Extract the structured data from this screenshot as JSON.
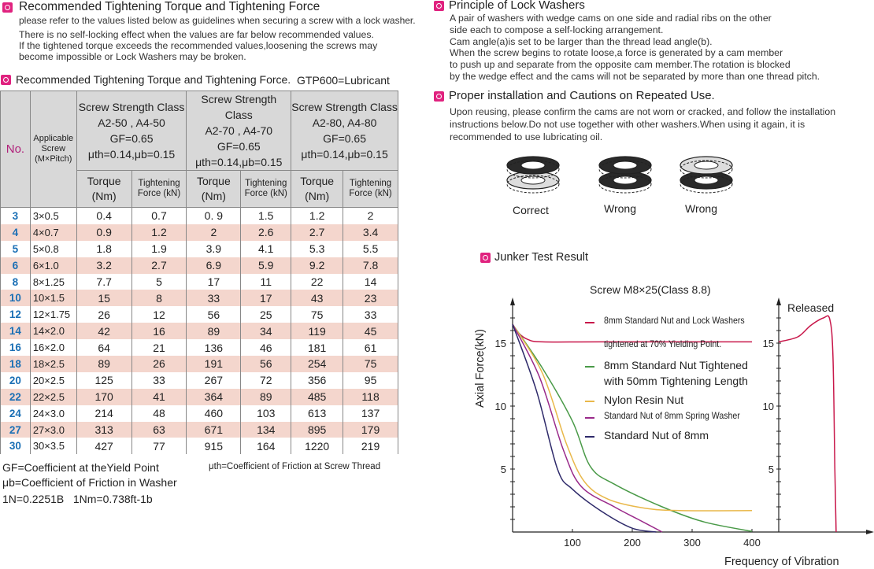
{
  "section1": {
    "title": "Recommended Tightening Torque and Tightening Force",
    "lines": [
      "please refer to the values listed below as guidelines when securing a screw with a lock washer.",
      "There is no self-locking effect when the values are far below recommended values.",
      "If the tightened torque exceeds the recommended values,loosening the screws may",
      "become impossible or Lock Washers may be broken."
    ]
  },
  "table_section": {
    "title": "Recommended Tightening Torque and Tightening Force.",
    "lubricant": "GTP600=Lubricant"
  },
  "table": {
    "no_header": "No.",
    "screw_header": "Applicable Screw (M×Pitch)",
    "classes": [
      {
        "name": "Screw Strength Class",
        "grade": "A2-50 , A4-50",
        "gf": "GF=0.65",
        "mu": "μth=0.14,μb=0.15"
      },
      {
        "name": "Screw Strength Class",
        "grade": "A2-70 , A4-70",
        "gf": "GF=0.65",
        "mu": "μth=0.14,μb=0.15"
      },
      {
        "name": "Screw Strength Class",
        "grade": "A2-80,  A4-80",
        "gf": "GF=0.65",
        "mu": "μth=0.14,μb=0.15"
      }
    ],
    "torque_label": "Torque (Nm)",
    "force_label": "Tightening Force (kN)",
    "rows": [
      [
        "3",
        "3×0.5",
        "0.4",
        "0.7",
        "0. 9",
        "1.5",
        "1.2",
        "2"
      ],
      [
        "4",
        "4×0.7",
        "0.9",
        "1.2",
        "2",
        "2.6",
        "2.7",
        "3.4"
      ],
      [
        "5",
        "5×0.8",
        "1.8",
        "1.9",
        "3.9",
        "4.1",
        "5.3",
        "5.5"
      ],
      [
        "6",
        "6×1.0",
        "3.2",
        "2.7",
        "6.9",
        "5.9",
        "9.2",
        "7.8"
      ],
      [
        "8",
        "8×1.25",
        "7.7",
        "5",
        "17",
        "11",
        "22",
        "14"
      ],
      [
        "10",
        "10×1.5",
        "15",
        "8",
        "33",
        "17",
        "43",
        "23"
      ],
      [
        "12",
        "12×1.75",
        "26",
        "12",
        "56",
        "25",
        "75",
        "33"
      ],
      [
        "14",
        "14×2.0",
        "42",
        "16",
        "89",
        "34",
        "119",
        "45"
      ],
      [
        "16",
        "16×2.0",
        "64",
        "21",
        "136",
        "46",
        "181",
        "61"
      ],
      [
        "18",
        "18×2.5",
        "89",
        "26",
        "191",
        "56",
        "254",
        "75"
      ],
      [
        "20",
        "20×2.5",
        "125",
        "33",
        "267",
        "72",
        "356",
        "95"
      ],
      [
        "22",
        "22×2.5",
        "170",
        "41",
        "364",
        "89",
        "485",
        "118"
      ],
      [
        "24",
        "24×3.0",
        "214",
        "48",
        "460",
        "103",
        "613",
        "137"
      ],
      [
        "27",
        "27×3.0",
        "313",
        "63",
        "671",
        "134",
        "895",
        "179"
      ],
      [
        "30",
        "30×3.5",
        "427",
        "77",
        "915",
        "164",
        "1220",
        "219"
      ]
    ]
  },
  "notes": {
    "gf": "GF=Coefficient at theYield Point",
    "muth": "μth=Coefficient of Friction at Screw Thread",
    "mub": "μb=Coefficient of Friction in Washer",
    "units": "1N=0.2251B   1Nm=0.738ft-1b"
  },
  "principle": {
    "title": "Principle of Lock Washers",
    "lines": [
      "A pair of washers with wedge cams on one side and radial ribs on the other",
      "side each to compose a self-locking arrangement.",
      "Cam angle(a)is set to be larger than the thread lead angle(b).",
      "When the screw begins to rotate loose,a force is generated by a cam member",
      "to push up and separate from the opposite cam member.The rotation is blocked",
      "by the wedge effect and the cams will not be separated by more than one thread pitch."
    ]
  },
  "installation": {
    "title": "Proper installation and Cautions on Repeated Use.",
    "lines": [
      "Upon reusing, please confirm the cams are not worn or cracked, and follow the installation",
      "instructions below.Do not use together with other washers.When using it again, it is",
      "recommended to use lubricating oil."
    ],
    "examples": [
      "Correct",
      "Wrong",
      "Wrong"
    ]
  },
  "junker": {
    "title": "Junker Test Result"
  },
  "chart_data": {
    "type": "line",
    "title": "Screw M8×25(Class 8.8)",
    "xlabel": "Frequency of Vibration",
    "ylabel": "Axial Force(kN)",
    "xlim": [
      0,
      400
    ],
    "ylim": [
      0,
      18
    ],
    "xticks": [
      "100",
      "200",
      "300",
      "400"
    ],
    "yticks": [
      "5",
      "10",
      "15"
    ],
    "series": [
      {
        "name": "8mm Standard Nut and Lock Washers tightened at 70% Yielding Point.",
        "legend": [
          "8mm Standard Nut and Lock Washers",
          "tightened at 70% Yielding Point."
        ],
        "color": "#c8174a",
        "points": [
          [
            0,
            16.5
          ],
          [
            10,
            15.8
          ],
          [
            25,
            15.3
          ],
          [
            50,
            15.1
          ],
          [
            150,
            15.1
          ],
          [
            400,
            15.1
          ]
        ]
      },
      {
        "name": "8mm Standard Nut Tightened with 50mm Tightening Length",
        "legend": [
          "8mm Standard Nut Tightened",
          "with 50mm Tightening  Length"
        ],
        "color": "#4a9a48",
        "points": [
          [
            0,
            16.5
          ],
          [
            50,
            13
          ],
          [
            100,
            8.8
          ],
          [
            130,
            5.2
          ],
          [
            170,
            3.8
          ],
          [
            250,
            2
          ],
          [
            320,
            0.8
          ],
          [
            400,
            0.05
          ]
        ]
      },
      {
        "name": "Nylon Resin Nut",
        "legend": [
          "Nylon Resin Nut"
        ],
        "color": "#e9b84a",
        "points": [
          [
            0,
            16.5
          ],
          [
            50,
            12.6
          ],
          [
            90,
            7
          ],
          [
            120,
            4
          ],
          [
            160,
            2.6
          ],
          [
            220,
            1.9
          ],
          [
            280,
            1.7
          ],
          [
            400,
            1.7
          ]
        ]
      },
      {
        "name": "Standard Nut of 8mm Spring Washer",
        "legend": [
          "Standard Nut of 8mm Spring Washer"
        ],
        "color": "#9a2a8a",
        "points": [
          [
            0,
            16.5
          ],
          [
            45,
            12.3
          ],
          [
            85,
            6.5
          ],
          [
            115,
            3.6
          ],
          [
            170,
            2
          ],
          [
            210,
            1
          ],
          [
            250,
            0
          ]
        ]
      },
      {
        "name": "Standard Nut of 8mm",
        "legend": [
          "Standard Nut of 8mm"
        ],
        "color": "#2e2a6a",
        "points": [
          [
            0,
            16.5
          ],
          [
            40,
            11.2
          ],
          [
            75,
            5
          ],
          [
            100,
            3.4
          ],
          [
            150,
            1.6
          ],
          [
            200,
            0.3
          ],
          [
            240,
            0
          ]
        ]
      }
    ],
    "released_panel": {
      "label": "Released",
      "yticks": [
        "5",
        "10",
        "15"
      ],
      "color": "#c8174a",
      "points": [
        [
          0,
          15.1
        ],
        [
          30,
          15.5
        ],
        [
          50,
          16.4
        ],
        [
          70,
          17
        ],
        [
          80,
          16.9
        ],
        [
          85,
          14
        ],
        [
          88,
          5
        ],
        [
          90,
          0
        ]
      ]
    }
  }
}
